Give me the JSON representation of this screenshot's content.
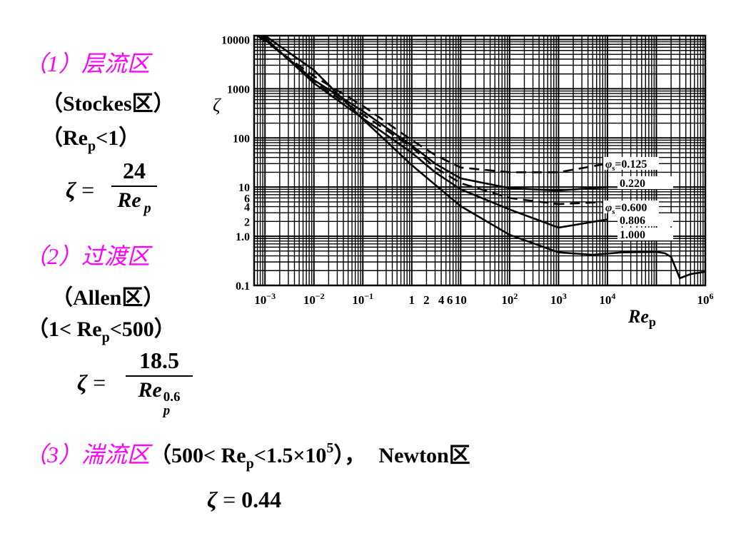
{
  "sections": {
    "laminar": {
      "heading": "（1）层流区",
      "name": "（Stockes区）",
      "cond_open": "（Re",
      "cond_sub": "p",
      "cond_close": "<1）",
      "numerator": "24",
      "den_main": "Re",
      "den_sub": "p"
    },
    "transition": {
      "heading": "（2）过渡区",
      "name": "（Allen区）",
      "cond_open": "（1< Re",
      "cond_sub": "p",
      "cond_close": "<500）",
      "numerator": "18.5",
      "den_main": "Re",
      "den_sub": "p",
      "den_sup": "0.6"
    },
    "turbulent": {
      "heading": "（3）湍流区",
      "cond_open": "（500< Re",
      "cond_sub": "p",
      "cond_mid": "<1.5×10",
      "cond_sup": "5",
      "cond_close": "），",
      "name": "Newton区",
      "formula": "0.44"
    }
  },
  "symbols": {
    "zeta": "ζ",
    "equals": "="
  },
  "chart_data": {
    "type": "line",
    "xscale": "log",
    "yscale": "log",
    "xlim": [
      0.0006,
      1000000
    ],
    "ylim": [
      0.1,
      12000
    ],
    "grid": true,
    "ylabel": "ζ",
    "xlabel_main": "Re",
    "xlabel_sub": "p",
    "x_tick_labels": [
      {
        "x": 0.001,
        "base": "10",
        "exp": "−3"
      },
      {
        "x": 0.01,
        "base": "10",
        "exp": "−2"
      },
      {
        "x": 0.1,
        "base": "10",
        "exp": "−1"
      },
      {
        "x": 1,
        "base": "1",
        "exp": ""
      },
      {
        "x": 2,
        "base": "2",
        "exp": ""
      },
      {
        "x": 4,
        "base": "4",
        "exp": ""
      },
      {
        "x": 6,
        "base": "6",
        "exp": ""
      },
      {
        "x": 10,
        "base": "10",
        "exp": ""
      },
      {
        "x": 100,
        "base": "10",
        "exp": "2"
      },
      {
        "x": 1000,
        "base": "10",
        "exp": "3"
      },
      {
        "x": 10000,
        "base": "10",
        "exp": "4"
      },
      {
        "x": 1000000,
        "base": "10",
        "exp": "6"
      }
    ],
    "y_tick_labels": [
      {
        "y": 10000,
        "label": "10000"
      },
      {
        "y": 1000,
        "label": "1000"
      },
      {
        "y": 100,
        "label": "100"
      },
      {
        "y": 10,
        "label": "10"
      },
      {
        "y": 6,
        "label": "6"
      },
      {
        "y": 4,
        "label": "4"
      },
      {
        "y": 2,
        "label": "2"
      },
      {
        "y": 1,
        "label": "1.0"
      },
      {
        "y": 0.1,
        "label": "0.1"
      }
    ],
    "series": [
      {
        "name": "φs=0.125",
        "label": "φ",
        "label_sub": "s",
        "label_rest": "=0.125",
        "style": "dashed",
        "x": [
          0.0007,
          0.01,
          0.1,
          1,
          3,
          10,
          100,
          1000,
          10000
        ],
        "y": [
          12000,
          1800,
          450,
          90,
          45,
          25,
          20,
          20,
          30
        ]
      },
      {
        "name": "0.220",
        "label": "0.220",
        "style": "solid",
        "x": [
          0.0008,
          0.01,
          0.1,
          1,
          3,
          10,
          100,
          1000,
          10000
        ],
        "y": [
          12000,
          1500,
          350,
          70,
          30,
          15,
          9.5,
          8.5,
          10
        ]
      },
      {
        "name": "φs=0.600",
        "label": "φ",
        "label_sub": "s",
        "label_rest": "=0.600",
        "style": "dashed",
        "x": [
          0.0008,
          0.01,
          0.1,
          1,
          3,
          10,
          100,
          1000,
          10000
        ],
        "y": [
          12000,
          1400,
          300,
          65,
          25,
          12,
          6,
          4.5,
          5
        ]
      },
      {
        "name": "0.806",
        "label": "0.806",
        "style": "solid",
        "x": [
          0.0009,
          0.01,
          0.1,
          1,
          3,
          10,
          100,
          1000,
          10000
        ],
        "y": [
          12000,
          1300,
          250,
          50,
          20,
          9,
          3.5,
          1.5,
          2.2
        ]
      },
      {
        "name": "1.000",
        "label": "1.000",
        "style": "solid",
        "x": [
          0.001,
          0.01,
          0.1,
          1,
          10,
          100,
          1000,
          5000,
          20000,
          100000,
          150000,
          200000,
          300000,
          500000,
          1000000
        ],
        "y": [
          12000,
          2400,
          240,
          28,
          4.1,
          1.07,
          0.47,
          0.42,
          0.47,
          0.48,
          0.45,
          0.38,
          0.14,
          0.17,
          0.19
        ]
      }
    ]
  }
}
